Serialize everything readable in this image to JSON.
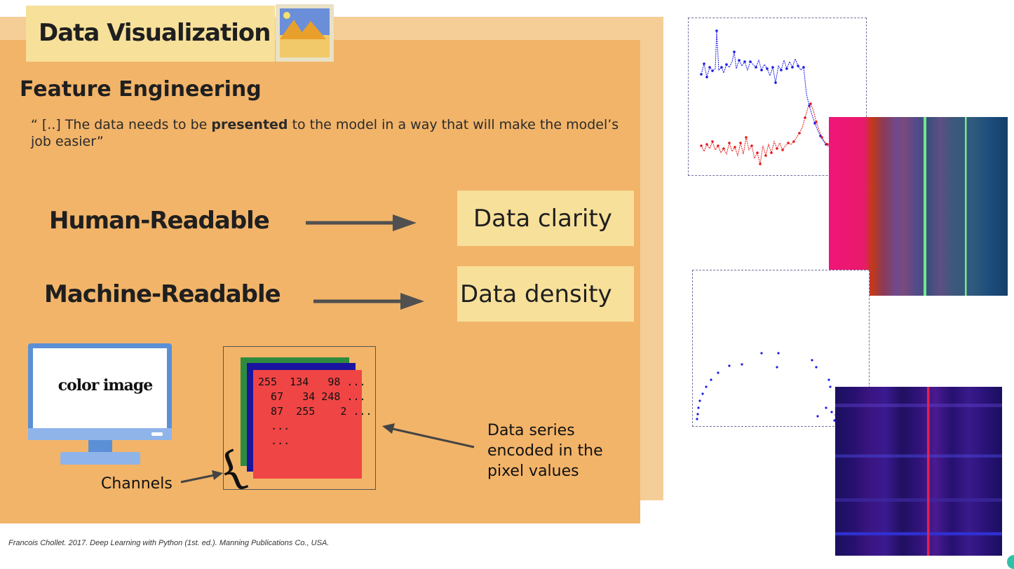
{
  "title": "Data Visualization",
  "heading": "Feature Engineering",
  "quote": {
    "before": "“ [..] The data needs to be ",
    "bold": "presented",
    "after": " to the model in a way that will make the model’s job easier”"
  },
  "rows": [
    {
      "label": "Human-Readable",
      "target": "Data clarity"
    },
    {
      "label": "Machine-Readable",
      "target": "Data density"
    }
  ],
  "monitor_text": "color image",
  "pixel_values": [
    "255  134   98 ...",
    "  67   34 248 ...",
    "  87  255    2 ...",
    "  ...",
    "  ..."
  ],
  "channels_label": "Channels",
  "series_label": [
    "Data series",
    "encoded in the",
    "pixel values"
  ],
  "citation": "Francois Chollet. 2017. Deep Learning with Python (1st. ed.). Manning Publications Co., USA.",
  "colors": {
    "title_box": "#f7e09a",
    "panel": "#f2b469",
    "panel_back": "#f5cd96",
    "series_blue": "#1a1ae6",
    "series_red": "#e61a1a"
  },
  "icons": [
    "image-icon",
    "arrow-right-icon",
    "monitor-icon",
    "brace-icon"
  ]
}
